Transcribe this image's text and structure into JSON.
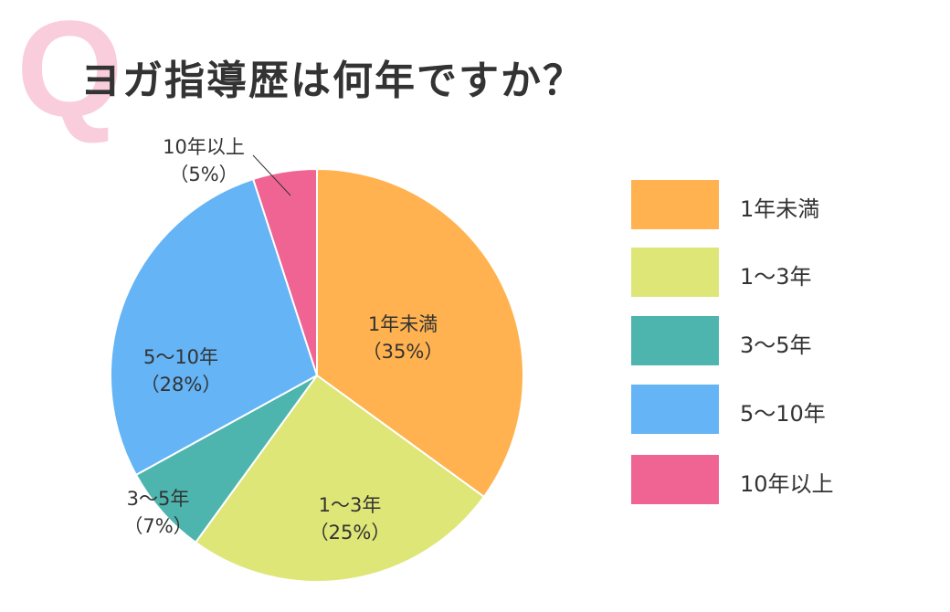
{
  "title_mark": "Q",
  "title": "ヨガ指導歴は何年ですか？",
  "chart_data": {
    "type": "pie",
    "title": "ヨガ指導歴は何年ですか？",
    "start": "top",
    "direction": "clockwise",
    "legend_position": "right",
    "slices": [
      {
        "label": "1年未満",
        "value": 35,
        "data_label": "（35%）",
        "color": "#FFB24F"
      },
      {
        "label": "1〜3年",
        "value": 25,
        "data_label": "（25%）",
        "color": "#DEE677"
      },
      {
        "label": "3〜5年",
        "value": 7,
        "data_label": "（7%）",
        "color": "#4DB5AD"
      },
      {
        "label": "5〜10年",
        "value": 28,
        "data_label": "（28%）",
        "color": "#64B4F6"
      },
      {
        "label": "10年以上",
        "value": 5,
        "data_label": "（5%）",
        "color": "#F06493"
      }
    ]
  }
}
